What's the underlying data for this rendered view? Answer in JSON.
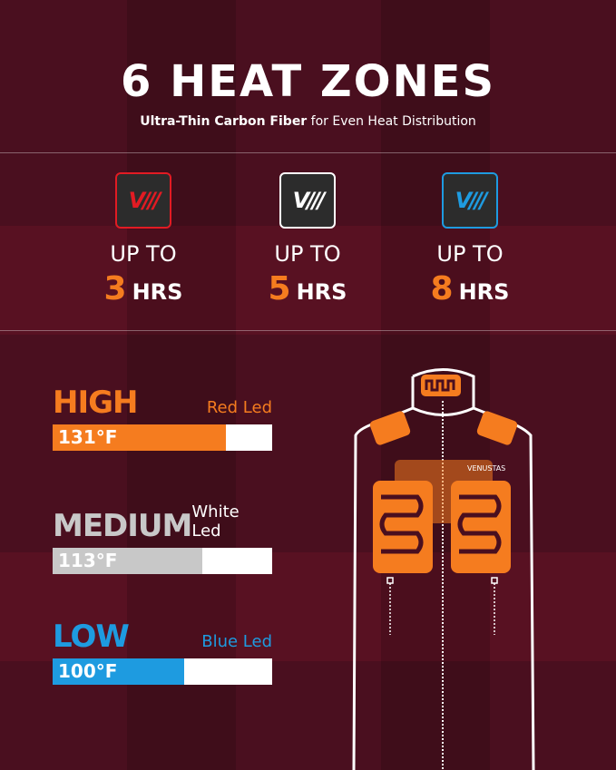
{
  "header": {
    "title": "6 HEAT ZONES",
    "subtitle_bold": "Ultra-Thin Carbon Fiber",
    "subtitle_rest": " for Even Heat Distribution"
  },
  "modes": [
    {
      "up_to": "UP TO",
      "hours": "3",
      "unit": "HRS",
      "logo": "V///",
      "color": "#e21b23"
    },
    {
      "up_to": "UP TO",
      "hours": "5",
      "unit": "HRS",
      "logo": "V///",
      "color": "#ffffff"
    },
    {
      "up_to": "UP TO",
      "hours": "8",
      "unit": "HRS",
      "logo": "V///",
      "color": "#1e9be0"
    }
  ],
  "levels": [
    {
      "name": "HIGH",
      "led": "Red Led",
      "temp": "131°F",
      "color": "#f57c1f",
      "fill_pct": 79
    },
    {
      "name": "MEDIUM",
      "led": "White Led",
      "temp": "113°F",
      "color": "#c8c8c8",
      "fill_pct": 68
    },
    {
      "name": "LOW",
      "led": "Blue Led",
      "temp": "100°F",
      "color": "#1e9be0",
      "fill_pct": 60
    }
  ],
  "vest": {
    "brand": "VENUSTAS",
    "heating_color": "#f57c1f"
  }
}
